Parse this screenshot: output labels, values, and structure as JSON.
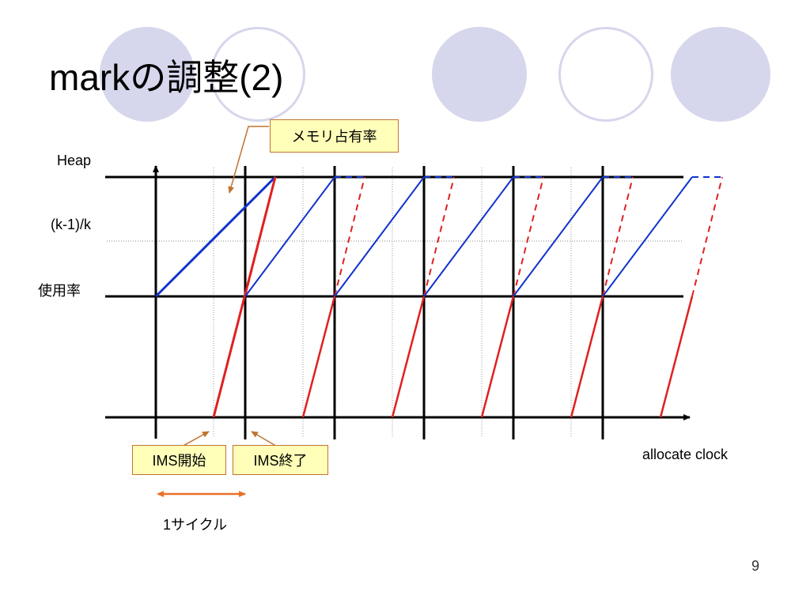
{
  "slide": {
    "title": "markの調整(2)",
    "page_number": "9"
  },
  "diagram": {
    "y_axis_labels": {
      "heap": "Heap",
      "threshold": "(k-1)/k",
      "usage": "使用率"
    },
    "x_axis_label": "allocate clock",
    "callouts": {
      "memory_occupancy": "メモリ占有率",
      "ims_start": "IMS開始",
      "ims_end": "IMS終了"
    },
    "cycle_label": "1サイクル",
    "cycle_count": 6,
    "colors": {
      "occupancy_line": "#1133cc",
      "marking_line": "#e02020",
      "cycle_arrow": "#e8712a",
      "callout_fill": "#ffffb9",
      "callout_border": "#c0742f",
      "decor_circles": "#d6d6ec"
    }
  }
}
